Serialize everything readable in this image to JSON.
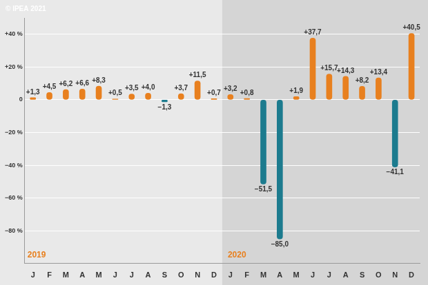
{
  "chart_data": {
    "type": "bar",
    "annotations": {
      "credit": "© IPEA 2021",
      "periods": [
        "2019",
        "2020"
      ]
    },
    "categories": [
      "J",
      "F",
      "M",
      "A",
      "M",
      "J",
      "J",
      "A",
      "S",
      "O",
      "N",
      "D",
      "J",
      "F",
      "M",
      "A",
      "M",
      "J",
      "J",
      "A",
      "S",
      "O",
      "N",
      "D"
    ],
    "values": [
      1.3,
      4.5,
      6.2,
      6.6,
      8.3,
      0.5,
      3.5,
      4.0,
      -1.3,
      3.7,
      11.5,
      0.7,
      3.2,
      0.8,
      -51.5,
      -85.0,
      1.9,
      37.7,
      15.7,
      14.3,
      8.2,
      13.4,
      -41.1,
      40.5
    ],
    "value_labels": [
      "+1,3",
      "+4,5",
      "+6,2",
      "+6,6",
      "+8,3",
      "+0,5",
      "+3,5",
      "+4,0",
      "−1,3",
      "+3,7",
      "+11,5",
      "+0,7",
      "+3,2",
      "+0,8",
      "−51,5",
      "−85,0",
      "+1,9",
      "+37,7",
      "+15,7",
      "+14,3",
      "+8,2",
      "+13,4",
      "−41,1",
      "+40,5"
    ],
    "colors": [
      "#e8801f",
      "#e8801f",
      "#e8801f",
      "#e8801f",
      "#e8801f",
      "#e8801f",
      "#e8801f",
      "#e8801f",
      "#1c7b8e",
      "#e8801f",
      "#e8801f",
      "#e8801f",
      "#e8801f",
      "#e8801f",
      "#1c7b8e",
      "#1c7b8e",
      "#e8801f",
      "#e8801f",
      "#e8801f",
      "#e8801f",
      "#e8801f",
      "#e8801f",
      "#1c7b8e",
      "#e8801f"
    ],
    "data_labels": true,
    "ylim": [
      -100,
      50
    ],
    "yticks": [
      {
        "value": -80,
        "label": "−80 %"
      },
      {
        "value": -60,
        "label": "−60 %"
      },
      {
        "value": -40,
        "label": "−40 %"
      },
      {
        "value": -20,
        "label": "−20 %"
      },
      0,
      {
        "value": 20,
        "label": "+20 %"
      },
      {
        "value": 40,
        "label": "+40 %"
      }
    ],
    "grid": true
  }
}
